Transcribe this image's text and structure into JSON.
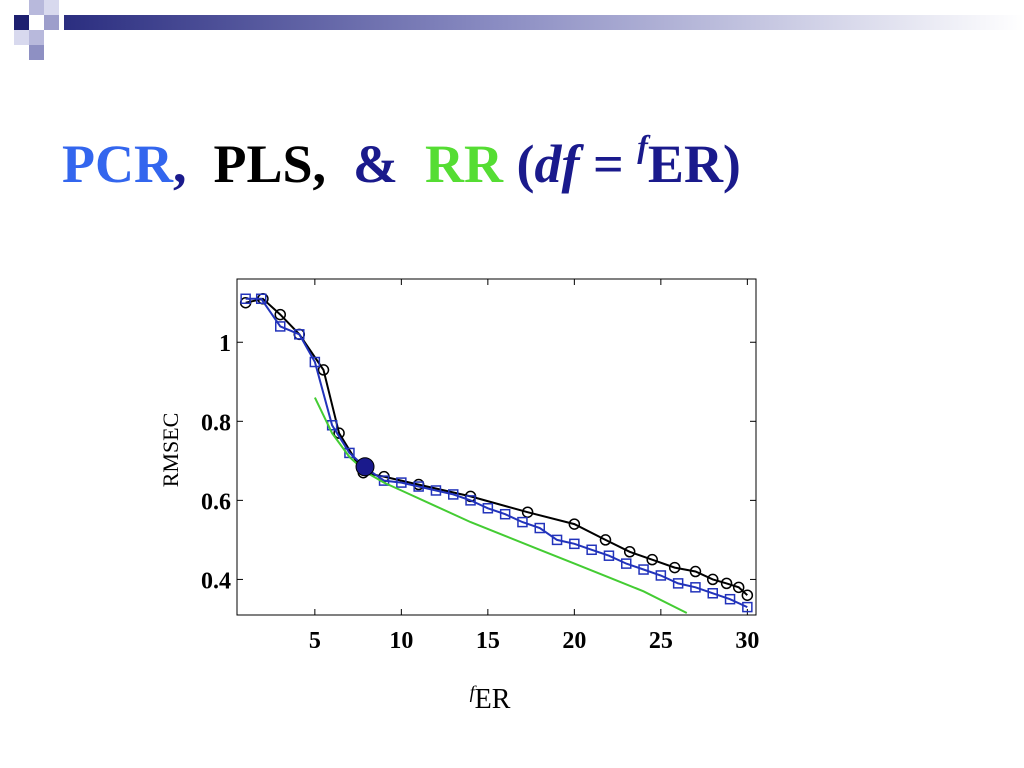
{
  "title": {
    "pcr": "PCR",
    "sep1": ",",
    "pls": "PLS,",
    "amp": "&",
    "rr": "RR",
    "open_paren": "(",
    "df": "df",
    "equals": "=",
    "sup_f": "f",
    "er": "ER)",
    "colors": {
      "pcr": "#3366ee",
      "pls": "#000000",
      "amp": "#1a1a8c",
      "rr": "#55dd33",
      "paren": "#1a1a8c"
    }
  },
  "chart_data": {
    "type": "line",
    "xlabel_sup": "f",
    "xlabel": "ER",
    "ylabel": "RMSEC",
    "xlim": [
      0.5,
      30.5
    ],
    "ylim": [
      0.31,
      1.16
    ],
    "xticks": [
      5,
      10,
      15,
      20,
      25,
      30
    ],
    "yticks": [
      0.4,
      0.6,
      0.8,
      1
    ],
    "ytick_labels": [
      "0.4",
      "0.6",
      "0.8",
      "1"
    ],
    "xtick_labels": [
      "5",
      "10",
      "15",
      "20",
      "25",
      "30"
    ],
    "grid": false,
    "series": [
      {
        "color": "#000000",
        "marker": "circle",
        "x": [
          1.0,
          2.0,
          3.0,
          4.1,
          5.5,
          6.4,
          7.8,
          9.0,
          11.0,
          14.0,
          17.3,
          20.0,
          21.8,
          23.2,
          24.5,
          25.8,
          27.0,
          28.0,
          28.8,
          29.5,
          30.0
        ],
        "y": [
          1.1,
          1.11,
          1.07,
          1.02,
          0.93,
          0.77,
          0.67,
          0.66,
          0.64,
          0.61,
          0.57,
          0.54,
          0.5,
          0.47,
          0.45,
          0.43,
          0.42,
          0.4,
          0.39,
          0.38,
          0.36
        ]
      },
      {
        "color": "#2233bb",
        "marker": "square",
        "x": [
          1.0,
          1.9,
          3.0,
          4.1,
          5.0,
          6.0,
          7.0,
          8.0,
          9.0,
          10.0,
          11.0,
          12.0,
          13.0,
          14.0,
          15.0,
          16.0,
          17.0,
          18.0,
          19.0,
          20.0,
          21.0,
          22.0,
          23.0,
          24.0,
          25.0,
          26.0,
          27.0,
          28.0,
          29.0,
          30.0
        ],
        "y": [
          1.11,
          1.11,
          1.04,
          1.02,
          0.95,
          0.79,
          0.72,
          0.68,
          0.65,
          0.645,
          0.635,
          0.625,
          0.615,
          0.6,
          0.58,
          0.565,
          0.545,
          0.53,
          0.5,
          0.49,
          0.475,
          0.46,
          0.44,
          0.425,
          0.41,
          0.39,
          0.38,
          0.365,
          0.35,
          0.33
        ]
      },
      {
        "color": "#44cc33",
        "marker": "none",
        "x": [
          5.0,
          6.0,
          7.0,
          8.0,
          9.0,
          10.0,
          12.0,
          14.0,
          16.0,
          18.0,
          20.0,
          22.0,
          24.0,
          26.5
        ],
        "y": [
          0.86,
          0.77,
          0.71,
          0.67,
          0.645,
          0.625,
          0.585,
          0.545,
          0.51,
          0.475,
          0.44,
          0.405,
          0.37,
          0.315
        ]
      }
    ],
    "highlight_point": {
      "x": 7.9,
      "y": 0.685,
      "color": "#1a1a8c"
    }
  }
}
